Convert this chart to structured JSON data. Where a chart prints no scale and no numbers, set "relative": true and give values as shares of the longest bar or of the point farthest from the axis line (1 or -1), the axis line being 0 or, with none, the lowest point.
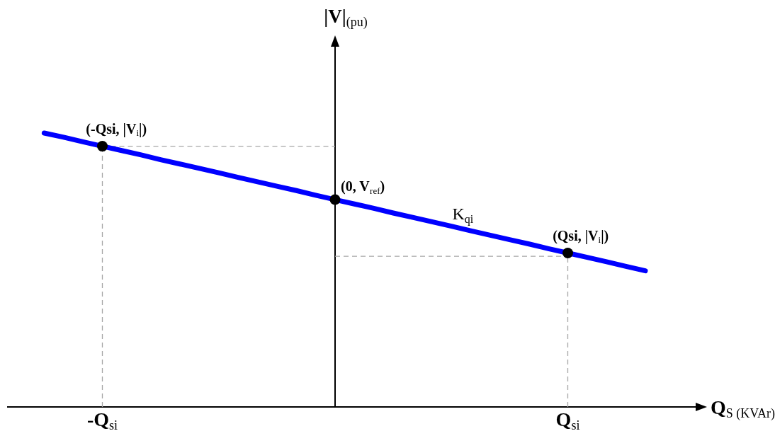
{
  "chart_data": {
    "type": "line",
    "relative": true,
    "xlabel": "Q$_{S (KVAr)}$",
    "categories": [
      null,
      null,
      null,
      null,
      "-Q$_{si}$",
      null,
      null,
      null,
      null,
      null,
      null,
      null,
      null,
      null,
      null,
      null,
      null,
      null,
      null,
      null,
      null,
      null,
      null,
      null,
      null,
      null,
      null,
      null,
      "Q$_{si}$",
      null,
      null,
      null,
      null
    ],
    "legend": false,
    "series": [
      {
        "color": "#a6a6a6",
        "line_style": "dashed",
        "marker": "none",
        "x": [
          "-Q$_{si}$",
          "-Q$_{si}$"
        ],
        "values": [
          0,
          0.952
        ]
      },
      {
        "color": "#a6a6a6",
        "line_style": "dashed",
        "marker": "none",
        "values": [
          null,
          null,
          null,
          null,
          0.952,
          0.952,
          0.952,
          0.952,
          0.952,
          0.952,
          0.952,
          0.952,
          0.952,
          0.952,
          0.952,
          0.952,
          0.952,
          null,
          null,
          null,
          null,
          null,
          null,
          null,
          null,
          null,
          null,
          null,
          null,
          null,
          null,
          null,
          null
        ]
      },
      {
        "color": "#a6a6a6",
        "line_style": "dashed",
        "marker": "none",
        "values": [
          null,
          null,
          null,
          null,
          null,
          null,
          null,
          null,
          null,
          null,
          null,
          null,
          null,
          null,
          null,
          null,
          0.55,
          0.55,
          0.55,
          0.55,
          0.55,
          0.55,
          0.55,
          0.55,
          0.55,
          0.55,
          0.55,
          0.55,
          0.55,
          null,
          null,
          null,
          null
        ]
      },
      {
        "color": "#a6a6a6",
        "line_style": "dashed",
        "marker": "none",
        "x": [
          "Q$_{si}$",
          "Q$_{si}$"
        ],
        "values": [
          0,
          0.55
        ]
      },
      {
        "color": "#0000ff",
        "line_style": "solid",
        "marker": "none",
        "values": [
          null,
          1,
          0.985,
          0.968,
          0.952,
          0.936,
          0.92,
          0.903,
          0.887,
          0.871,
          0.855,
          0.838,
          0.822,
          0.806,
          0.79,
          0.773,
          0.757,
          0.741,
          0.725,
          0.708,
          0.692,
          0.676,
          0.66,
          0.643,
          0.627,
          0.611,
          0.595,
          0.578,
          0.562,
          0.546,
          0.53,
          0.513,
          0.497
        ]
      },
      {
        "type": "scatter",
        "color": "#000000",
        "marker": "circle",
        "values": [
          null,
          null,
          null,
          null,
          0.952,
          null,
          null,
          null,
          null,
          null,
          null,
          null,
          null,
          null,
          null,
          null,
          0.757,
          null,
          null,
          null,
          null,
          null,
          null,
          null,
          null,
          null,
          null,
          null,
          0.562,
          null,
          null,
          null,
          null
        ]
      }
    ],
    "annotations": [
      {
        "text": "(-Qsi, |V$_{i}$|)",
        "x": "-Q$_{si}$",
        "y": 0.952
      },
      "(0, V$_{ref}$)",
      {
        "text": "K$_{qi}$",
        "y": 0.65
      },
      {
        "text": "(Qsi, |V$_{i}$|)",
        "x": "Q$_{si}$",
        "y": 0.562
      },
      "|V|$_{(pu)}$"
    ]
  }
}
